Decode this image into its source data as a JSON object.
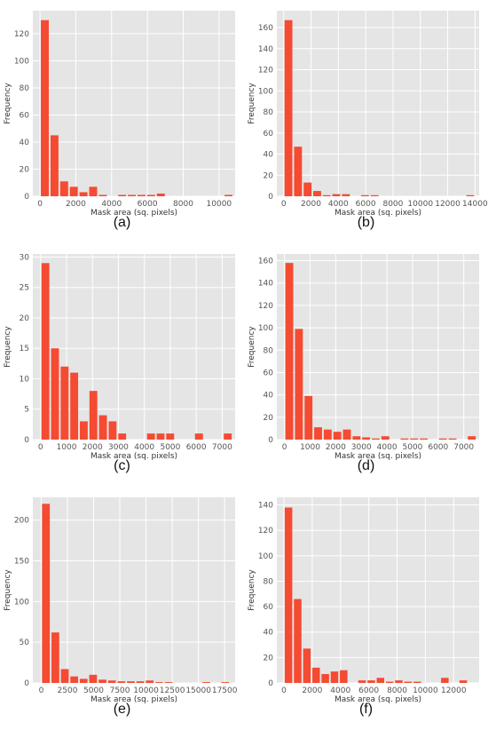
{
  "colors": {
    "bar": "#F44B32",
    "plot_bg": "#E5E5E5",
    "grid": "#FFFFFF"
  },
  "chart_data": [
    {
      "type": "bar",
      "caption": "(a)",
      "xlabel": "Mask area (sq. pixels)",
      "ylabel": "Frequency",
      "xlim": [
        -400,
        10900
      ],
      "ylim": [
        0,
        137
      ],
      "bin_width": 540,
      "xticks": [
        0,
        2000,
        4000,
        6000,
        8000,
        10000
      ],
      "yticks": [
        0,
        20,
        40,
        60,
        80,
        100,
        120
      ],
      "x": [
        270,
        810,
        1350,
        1890,
        2430,
        2970,
        3510,
        4050,
        4590,
        5130,
        5670,
        6210,
        6750,
        7290,
        7830,
        8370,
        8910,
        9450,
        9990,
        10530
      ],
      "values": [
        130,
        45,
        11,
        7,
        3,
        7,
        1,
        0,
        1,
        1,
        1,
        1,
        2,
        0,
        0,
        0,
        0,
        0,
        0,
        1
      ]
    },
    {
      "type": "bar",
      "caption": "(b)",
      "xlabel": "Mask area (sq. pixels)",
      "ylabel": "Frequency",
      "xlim": [
        -500,
        14300
      ],
      "ylim": [
        0,
        176
      ],
      "bin_width": 700,
      "xticks": [
        0,
        2000,
        4000,
        6000,
        8000,
        10000,
        12000,
        14000
      ],
      "yticks": [
        0,
        20,
        40,
        60,
        80,
        100,
        120,
        140,
        160
      ],
      "x": [
        350,
        1050,
        1750,
        2450,
        3150,
        3850,
        4550,
        5250,
        5950,
        6650,
        7350,
        8050,
        8750,
        9450,
        10150,
        10850,
        11550,
        12250,
        12950,
        13650
      ],
      "values": [
        167,
        47,
        13,
        5,
        1,
        2,
        2,
        0,
        1,
        1,
        0,
        0,
        0,
        0,
        0,
        0,
        0,
        0,
        0,
        1
      ]
    },
    {
      "type": "bar",
      "caption": "(c)",
      "xlabel": "Mask area (sq. pixels)",
      "ylabel": "Frequency",
      "xlim": [
        -300,
        7500
      ],
      "ylim": [
        0,
        30.5
      ],
      "bin_width": 370,
      "xticks": [
        0,
        1000,
        2000,
        3000,
        4000,
        5000,
        6000,
        7000
      ],
      "yticks": [
        0,
        5,
        10,
        15,
        20,
        25,
        30
      ],
      "x": [
        185,
        555,
        925,
        1295,
        1665,
        2035,
        2405,
        2775,
        3145,
        3515,
        3885,
        4255,
        4625,
        4995,
        5365,
        5735,
        6105,
        6475,
        6845,
        7215
      ],
      "values": [
        29,
        15,
        12,
        11,
        3,
        8,
        4,
        3,
        1,
        0,
        0,
        1,
        1,
        1,
        0,
        0,
        1,
        0,
        0,
        1
      ]
    },
    {
      "type": "bar",
      "caption": "(d)",
      "xlabel": "Mask area (sq. pixels)",
      "ylabel": "Frequency",
      "xlim": [
        -300,
        7600
      ],
      "ylim": [
        0,
        166
      ],
      "bin_width": 375,
      "xticks": [
        0,
        1000,
        2000,
        3000,
        4000,
        5000,
        6000,
        7000
      ],
      "yticks": [
        0,
        20,
        40,
        60,
        80,
        100,
        120,
        140,
        160
      ],
      "x": [
        187,
        562,
        937,
        1312,
        1687,
        2062,
        2437,
        2812,
        3187,
        3562,
        3937,
        4312,
        4687,
        5062,
        5437,
        5812,
        6187,
        6562,
        6937,
        7312
      ],
      "values": [
        158,
        99,
        39,
        11,
        9,
        7,
        9,
        3,
        2,
        1,
        3,
        0,
        1,
        1,
        1,
        0,
        1,
        1,
        0,
        3
      ]
    },
    {
      "type": "bar",
      "caption": "(e)",
      "xlabel": "Mask area (sq. pixels)",
      "ylabel": "Frequency",
      "xlim": [
        -800,
        18500
      ],
      "ylim": [
        0,
        228
      ],
      "bin_width": 900,
      "xticks": [
        0,
        2500,
        5000,
        7500,
        10000,
        12500,
        15000,
        17500
      ],
      "yticks": [
        0,
        50,
        100,
        150,
        200
      ],
      "x": [
        450,
        1350,
        2250,
        3150,
        4050,
        4950,
        5850,
        6750,
        7650,
        8550,
        9450,
        10350,
        11250,
        12150,
        13050,
        13950,
        14850,
        15750,
        16650,
        17550
      ],
      "values": [
        220,
        62,
        17,
        8,
        5,
        10,
        4,
        3,
        2,
        2,
        2,
        3,
        1,
        1,
        0,
        0,
        0,
        1,
        0,
        1
      ]
    },
    {
      "type": "bar",
      "caption": "(f)",
      "xlabel": "Mask area (sq. pixels)",
      "ylabel": "Frequency",
      "xlim": [
        -500,
        13800
      ],
      "ylim": [
        0,
        146
      ],
      "bin_width": 650,
      "xticks": [
        0,
        2000,
        4000,
        6000,
        8000,
        10000,
        12000
      ],
      "yticks": [
        0,
        20,
        40,
        60,
        80,
        100,
        120,
        140
      ],
      "x": [
        325,
        975,
        1625,
        2275,
        2925,
        3575,
        4225,
        4875,
        5525,
        6175,
        6825,
        7475,
        8125,
        8775,
        9425,
        10075,
        10725,
        11375,
        12025,
        12675
      ],
      "values": [
        138,
        66,
        27,
        12,
        7,
        9,
        10,
        0,
        2,
        2,
        4,
        1,
        2,
        1,
        1,
        0,
        0,
        4,
        0,
        2
      ]
    }
  ]
}
